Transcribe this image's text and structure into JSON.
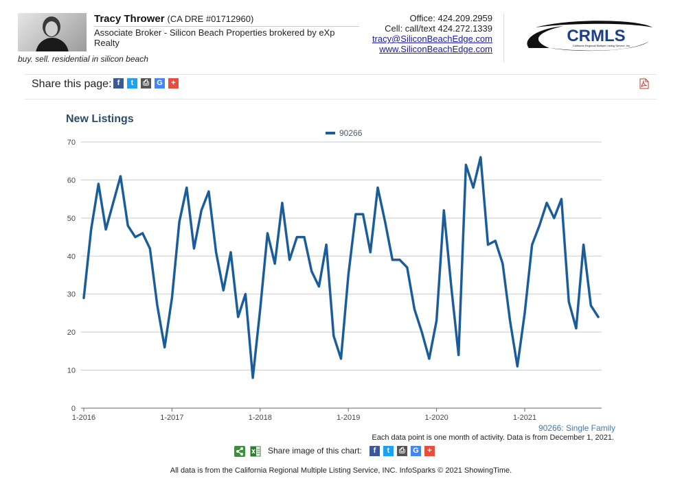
{
  "header": {
    "name": "Tracy Thrower",
    "license": "(CA DRE #01712960)",
    "title": "Associate Broker - Silicon Beach Properties brokered by eXp Realty",
    "tagline": "buy. sell. residential in silicon beach",
    "office": "Office: 424.209.2959",
    "cell": "Cell: call/text 424.272.1339",
    "email": "tracy@SiliconBeachEdge.com",
    "website": "www.SiliconBeachEdge.com",
    "logo_text": "CRMLS",
    "logo_subtext": "California Regional Multiple Listing Service, Inc."
  },
  "share": {
    "page_label": "Share this page:",
    "image_label": "Share image of this chart:",
    "buttons": [
      {
        "icon": "facebook-icon",
        "glyph": "f",
        "color": "#3b5998"
      },
      {
        "icon": "twitter-icon",
        "glyph": "t",
        "color": "#1da1f2"
      },
      {
        "icon": "print-icon",
        "glyph": "⎙",
        "color": "#555555"
      },
      {
        "icon": "google-icon",
        "glyph": "G",
        "color": "#4285f4"
      },
      {
        "icon": "plus-icon",
        "glyph": "+",
        "color": "#e74c3c"
      }
    ]
  },
  "footer": {
    "series_note": "90266: Single Family",
    "data_note": "Each data point is one month of activity. Data is from December 1, 2021.",
    "source_note": "All data is from the California Regional Multiple Listing Service, INC. InfoSparks © 2021 ShowingTime."
  },
  "chart_data": {
    "type": "line",
    "title": "New Listings",
    "xlabel": "",
    "ylabel": "",
    "ylim": [
      0,
      70
    ],
    "yticks": [
      0,
      10,
      20,
      30,
      40,
      50,
      60,
      70
    ],
    "xticks": [
      "1-2016",
      "1-2017",
      "1-2018",
      "1-2019",
      "1-2020",
      "1-2021"
    ],
    "grid": true,
    "legend": "top-center",
    "line_color": "#1b5c9a",
    "x": [
      "2016-01",
      "2016-02",
      "2016-03",
      "2016-04",
      "2016-05",
      "2016-06",
      "2016-07",
      "2016-08",
      "2016-09",
      "2016-10",
      "2016-11",
      "2016-12",
      "2017-01",
      "2017-02",
      "2017-03",
      "2017-04",
      "2017-05",
      "2017-06",
      "2017-07",
      "2017-08",
      "2017-09",
      "2017-10",
      "2017-11",
      "2017-12",
      "2018-01",
      "2018-02",
      "2018-03",
      "2018-04",
      "2018-05",
      "2018-06",
      "2018-07",
      "2018-08",
      "2018-09",
      "2018-10",
      "2018-11",
      "2018-12",
      "2019-01",
      "2019-02",
      "2019-03",
      "2019-04",
      "2019-05",
      "2019-06",
      "2019-07",
      "2019-08",
      "2019-09",
      "2019-10",
      "2019-11",
      "2019-12",
      "2020-01",
      "2020-02",
      "2020-03",
      "2020-04",
      "2020-05",
      "2020-06",
      "2020-07",
      "2020-08",
      "2020-09",
      "2020-10",
      "2020-11",
      "2020-12",
      "2021-01",
      "2021-02",
      "2021-03",
      "2021-04",
      "2021-05",
      "2021-06",
      "2021-07",
      "2021-08",
      "2021-09",
      "2021-10",
      "2021-11"
    ],
    "series": [
      {
        "name": "90266",
        "values": [
          29,
          47,
          59,
          47,
          54,
          61,
          48,
          45,
          46,
          42,
          27,
          16,
          29,
          49,
          58,
          42,
          52,
          57,
          41,
          31,
          41,
          24,
          30,
          8,
          26,
          46,
          38,
          54,
          39,
          45,
          45,
          36,
          32,
          43,
          19,
          13,
          35,
          51,
          51,
          41,
          58,
          49,
          39,
          39,
          37,
          26,
          20,
          13,
          23,
          52,
          32,
          14,
          64,
          58,
          66,
          43,
          44,
          38,
          23,
          11,
          25,
          43,
          48,
          54,
          50,
          55,
          28,
          21,
          43,
          27,
          24
        ]
      }
    ]
  }
}
